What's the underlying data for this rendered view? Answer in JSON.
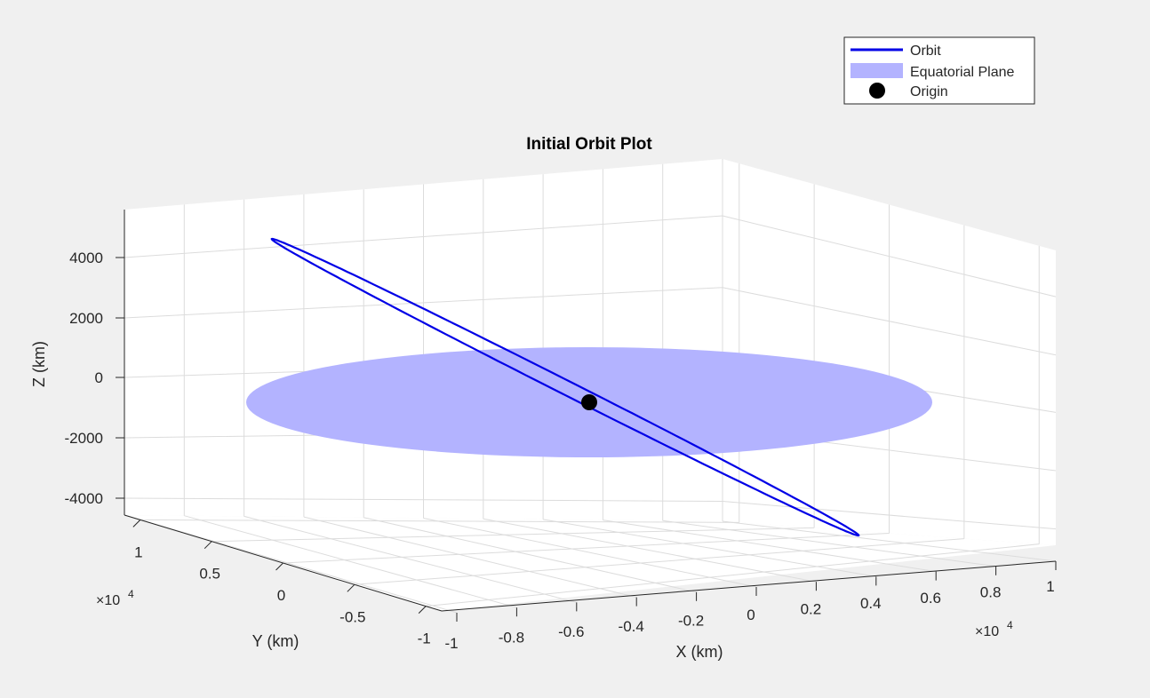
{
  "figure": {
    "background": "#f0f0f0"
  },
  "chart_data": {
    "type": "line3d",
    "title": "Initial Orbit Plot",
    "xlabel": "X (km)",
    "ylabel": "Y (km)",
    "zlabel": "Z (km)",
    "x_exponent_label": "×10",
    "x_exponent_power": "4",
    "y_exponent_label": "×10",
    "y_exponent_power": "4",
    "xlim": [
      -12000,
      12000
    ],
    "ylim": [
      -12000,
      12000
    ],
    "zlim": [
      -5000,
      5500
    ],
    "x_ticks": [
      -1,
      -0.8,
      -0.6,
      -0.4,
      -0.2,
      0,
      0.2,
      0.4,
      0.6,
      0.8,
      1
    ],
    "x_tick_labels": [
      "-1",
      "-0.8",
      "-0.6",
      "-0.4",
      "-0.2",
      "0",
      "0.2",
      "0.4",
      "0.6",
      "0.8",
      "1"
    ],
    "y_ticks": [
      1,
      0.5,
      0,
      -0.5,
      -1
    ],
    "y_tick_labels": [
      "1",
      "0.5",
      "0",
      "-0.5",
      "-1"
    ],
    "z_ticks": [
      4000,
      2000,
      0,
      -2000,
      -4000
    ],
    "z_tick_labels": [
      "4000",
      "2000",
      "0",
      "-2000",
      "-4000"
    ],
    "grid": true,
    "legend_position": "top-right",
    "legend": [
      {
        "label": "Orbit",
        "kind": "line",
        "color": "#0000e6"
      },
      {
        "label": "Equatorial Plane",
        "kind": "patch",
        "color": "#b3b3ff"
      },
      {
        "label": "Origin",
        "kind": "marker",
        "color": "#000000"
      }
    ],
    "series": [
      {
        "name": "Orbit",
        "type": "line",
        "color": "#0000e6",
        "points": [
          [
            -6200,
            9000,
            4200
          ],
          [
            6200,
            -9000,
            -4200
          ]
        ]
      },
      {
        "name": "Equatorial Plane",
        "type": "disk",
        "color": "#b3b3ff",
        "center": [
          0,
          0,
          0
        ],
        "radius": 10000,
        "z": 0
      },
      {
        "name": "Origin",
        "type": "point",
        "color": "#000000",
        "point": [
          0,
          0,
          0
        ]
      }
    ]
  }
}
